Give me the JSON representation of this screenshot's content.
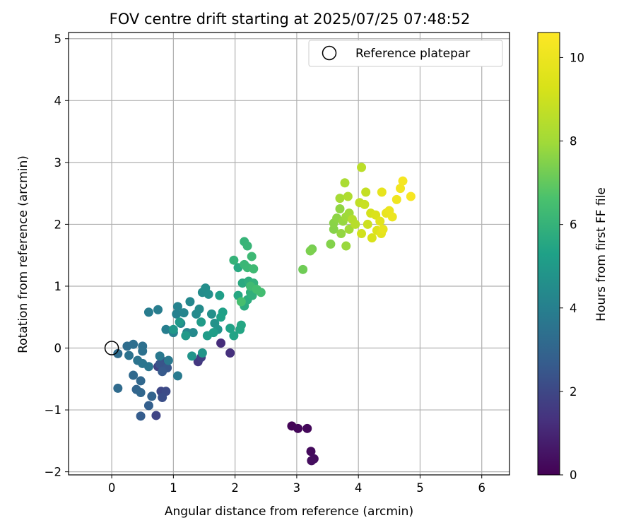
{
  "chart_data": {
    "type": "scatter",
    "title": "FOV centre drift starting at 2025/07/25 07:48:52",
    "xlabel": "Angular distance from reference (arcmin)",
    "ylabel": "Rotation from reference (arcmin)",
    "xlim": [
      -0.7,
      6.45
    ],
    "ylim": [
      -2.05,
      5.1
    ],
    "xticks": [
      0,
      1,
      2,
      3,
      4,
      5,
      6
    ],
    "yticks": [
      -2,
      -1,
      0,
      1,
      2,
      3,
      4,
      5
    ],
    "grid": true,
    "legend": {
      "position": "top-right",
      "entries": [
        "Reference platepar"
      ]
    },
    "reference_point": {
      "x": 0,
      "y": 0,
      "label": "Reference platepar",
      "marker": "open-circle"
    },
    "colorbar": {
      "label": "Hours from first FF file",
      "range": [
        0,
        10.6
      ],
      "ticks": [
        0,
        2,
        4,
        6,
        8,
        10
      ],
      "colormap": "viridis"
    },
    "points": [
      {
        "x": 2.92,
        "y": -1.26,
        "c": 0.1
      },
      {
        "x": 3.02,
        "y": -1.3,
        "c": 0.15
      },
      {
        "x": 3.17,
        "y": -1.3,
        "c": 0.2
      },
      {
        "x": 3.23,
        "y": -1.67,
        "c": 0.25
      },
      {
        "x": 3.28,
        "y": -1.79,
        "c": 0.3
      },
      {
        "x": 3.24,
        "y": -1.82,
        "c": 0.35
      },
      {
        "x": 1.77,
        "y": 0.08,
        "c": 1.2
      },
      {
        "x": 1.92,
        "y": -0.08,
        "c": 1.3
      },
      {
        "x": 1.4,
        "y": -0.22,
        "c": 1.5
      },
      {
        "x": 1.45,
        "y": -0.15,
        "c": 1.7
      },
      {
        "x": 0.75,
        "y": -0.3,
        "c": 1.8
      },
      {
        "x": 0.72,
        "y": -1.09,
        "c": 1.9
      },
      {
        "x": 0.8,
        "y": -0.7,
        "c": 2.0
      },
      {
        "x": 0.88,
        "y": -0.7,
        "c": 2.1
      },
      {
        "x": 0.82,
        "y": -0.8,
        "c": 2.2
      },
      {
        "x": 0.85,
        "y": -0.22,
        "c": 2.3
      },
      {
        "x": 0.78,
        "y": -0.26,
        "c": 2.4
      },
      {
        "x": 0.9,
        "y": -0.32,
        "c": 2.5
      },
      {
        "x": 0.82,
        "y": -0.38,
        "c": 2.6
      },
      {
        "x": 0.47,
        "y": -1.1,
        "c": 2.7
      },
      {
        "x": 0.6,
        "y": -0.93,
        "c": 2.8
      },
      {
        "x": 0.65,
        "y": -0.78,
        "c": 2.9
      },
      {
        "x": 0.4,
        "y": -0.67,
        "c": 3.0
      },
      {
        "x": 0.47,
        "y": -0.72,
        "c": 3.05
      },
      {
        "x": 0.47,
        "y": -0.53,
        "c": 3.1
      },
      {
        "x": 0.35,
        "y": -0.44,
        "c": 3.15
      },
      {
        "x": 0.1,
        "y": -0.65,
        "c": 3.2
      },
      {
        "x": 0.1,
        "y": -0.09,
        "c": 3.25
      },
      {
        "x": 0.25,
        "y": 0.03,
        "c": 3.3
      },
      {
        "x": 0.35,
        "y": 0.06,
        "c": 3.35
      },
      {
        "x": 0.5,
        "y": 0.03,
        "c": 3.4
      },
      {
        "x": 0.5,
        "y": -0.05,
        "c": 3.45
      },
      {
        "x": 0.28,
        "y": -0.12,
        "c": 3.5
      },
      {
        "x": 0.42,
        "y": -0.2,
        "c": 3.55
      },
      {
        "x": 0.5,
        "y": -0.25,
        "c": 3.6
      },
      {
        "x": 0.6,
        "y": -0.3,
        "c": 3.65
      },
      {
        "x": 0.78,
        "y": -0.13,
        "c": 3.7
      },
      {
        "x": 0.92,
        "y": -0.2,
        "c": 3.75
      },
      {
        "x": 1.07,
        "y": -0.45,
        "c": 3.8
      },
      {
        "x": 0.6,
        "y": 0.58,
        "c": 3.85
      },
      {
        "x": 0.75,
        "y": 0.62,
        "c": 3.9
      },
      {
        "x": 0.88,
        "y": 0.3,
        "c": 3.95
      },
      {
        "x": 1.0,
        "y": 0.25,
        "c": 4.0
      },
      {
        "x": 1.05,
        "y": 0.55,
        "c": 4.05
      },
      {
        "x": 1.07,
        "y": 0.67,
        "c": 4.1
      },
      {
        "x": 1.12,
        "y": 0.4,
        "c": 4.15
      },
      {
        "x": 1.17,
        "y": 0.57,
        "c": 4.2
      },
      {
        "x": 1.22,
        "y": 0.25,
        "c": 4.25
      },
      {
        "x": 1.27,
        "y": 0.75,
        "c": 4.3
      },
      {
        "x": 1.32,
        "y": 0.25,
        "c": 4.35
      },
      {
        "x": 1.37,
        "y": 0.55,
        "c": 4.4
      },
      {
        "x": 1.42,
        "y": 0.63,
        "c": 4.45
      },
      {
        "x": 1.47,
        "y": 0.9,
        "c": 4.5
      },
      {
        "x": 1.52,
        "y": 0.97,
        "c": 4.55
      },
      {
        "x": 1.57,
        "y": 0.87,
        "c": 4.6
      },
      {
        "x": 1.62,
        "y": 0.55,
        "c": 4.65
      },
      {
        "x": 1.67,
        "y": 0.4,
        "c": 4.7
      },
      {
        "x": 1.72,
        "y": 0.3,
        "c": 4.75
      },
      {
        "x": 1.3,
        "y": -0.13,
        "c": 4.8
      },
      {
        "x": 1.47,
        "y": -0.08,
        "c": 4.85
      },
      {
        "x": 1.0,
        "y": 0.3,
        "c": 4.9
      },
      {
        "x": 1.1,
        "y": 0.42,
        "c": 4.95
      },
      {
        "x": 1.2,
        "y": 0.2,
        "c": 5.0
      },
      {
        "x": 1.45,
        "y": 0.42,
        "c": 5.05
      },
      {
        "x": 1.55,
        "y": 0.2,
        "c": 5.1
      },
      {
        "x": 1.65,
        "y": 0.25,
        "c": 5.15
      },
      {
        "x": 1.75,
        "y": 0.85,
        "c": 5.2
      },
      {
        "x": 1.8,
        "y": 0.58,
        "c": 5.25
      },
      {
        "x": 1.77,
        "y": 0.5,
        "c": 5.3
      },
      {
        "x": 1.92,
        "y": 0.32,
        "c": 5.35
      },
      {
        "x": 1.98,
        "y": 0.2,
        "c": 5.4
      },
      {
        "x": 2.08,
        "y": 0.3,
        "c": 5.45
      },
      {
        "x": 2.1,
        "y": 0.37,
        "c": 5.5
      },
      {
        "x": 2.05,
        "y": 0.85,
        "c": 5.55
      },
      {
        "x": 2.05,
        "y": 1.3,
        "c": 5.6
      },
      {
        "x": 2.12,
        "y": 1.05,
        "c": 5.65
      },
      {
        "x": 2.15,
        "y": 0.68,
        "c": 5.7
      },
      {
        "x": 2.2,
        "y": 0.78,
        "c": 5.75
      },
      {
        "x": 2.22,
        "y": 1.08,
        "c": 5.8
      },
      {
        "x": 2.25,
        "y": 0.9,
        "c": 5.85
      },
      {
        "x": 2.28,
        "y": 0.85,
        "c": 5.9
      },
      {
        "x": 2.3,
        "y": 1.05,
        "c": 5.95
      },
      {
        "x": 1.98,
        "y": 1.42,
        "c": 6.0
      },
      {
        "x": 2.15,
        "y": 1.72,
        "c": 6.05
      },
      {
        "x": 2.2,
        "y": 1.65,
        "c": 6.1
      },
      {
        "x": 2.15,
        "y": 1.35,
        "c": 6.15
      },
      {
        "x": 2.2,
        "y": 1.3,
        "c": 6.2
      },
      {
        "x": 2.27,
        "y": 1.48,
        "c": 6.25
      },
      {
        "x": 2.3,
        "y": 1.28,
        "c": 6.3
      },
      {
        "x": 2.25,
        "y": 1.0,
        "c": 6.35
      },
      {
        "x": 2.42,
        "y": 0.9,
        "c": 6.4
      },
      {
        "x": 2.35,
        "y": 0.95,
        "c": 6.45
      },
      {
        "x": 2.1,
        "y": 0.75,
        "c": 6.5
      },
      {
        "x": 3.1,
        "y": 1.27,
        "c": 7.2
      },
      {
        "x": 3.25,
        "y": 1.6,
        "c": 7.3
      },
      {
        "x": 3.22,
        "y": 1.57,
        "c": 7.4
      },
      {
        "x": 3.55,
        "y": 1.68,
        "c": 7.5
      },
      {
        "x": 3.6,
        "y": 1.92,
        "c": 7.55
      },
      {
        "x": 3.6,
        "y": 2.02,
        "c": 7.6
      },
      {
        "x": 3.65,
        "y": 2.1,
        "c": 7.65
      },
      {
        "x": 3.7,
        "y": 2.25,
        "c": 7.7
      },
      {
        "x": 3.72,
        "y": 1.85,
        "c": 7.75
      },
      {
        "x": 3.75,
        "y": 2.05,
        "c": 7.8
      },
      {
        "x": 3.8,
        "y": 1.65,
        "c": 7.85
      },
      {
        "x": 3.8,
        "y": 2.12,
        "c": 7.9
      },
      {
        "x": 3.85,
        "y": 2.18,
        "c": 7.95
      },
      {
        "x": 3.85,
        "y": 1.92,
        "c": 8.0
      },
      {
        "x": 3.7,
        "y": 2.42,
        "c": 8.1
      },
      {
        "x": 3.78,
        "y": 2.67,
        "c": 8.2
      },
      {
        "x": 3.83,
        "y": 2.45,
        "c": 8.3
      },
      {
        "x": 3.9,
        "y": 2.08,
        "c": 8.4
      },
      {
        "x": 3.95,
        "y": 2.0,
        "c": 8.5
      },
      {
        "x": 4.05,
        "y": 2.92,
        "c": 8.6
      },
      {
        "x": 4.02,
        "y": 2.35,
        "c": 8.7
      },
      {
        "x": 4.12,
        "y": 2.52,
        "c": 8.8
      },
      {
        "x": 4.1,
        "y": 2.32,
        "c": 8.9
      },
      {
        "x": 4.15,
        "y": 2.0,
        "c": 9.0
      },
      {
        "x": 4.05,
        "y": 1.85,
        "c": 9.1
      },
      {
        "x": 4.2,
        "y": 2.18,
        "c": 9.2
      },
      {
        "x": 4.22,
        "y": 1.78,
        "c": 9.3
      },
      {
        "x": 4.28,
        "y": 2.15,
        "c": 9.4
      },
      {
        "x": 4.3,
        "y": 1.9,
        "c": 9.5
      },
      {
        "x": 4.35,
        "y": 2.05,
        "c": 9.6
      },
      {
        "x": 4.37,
        "y": 1.85,
        "c": 9.7
      },
      {
        "x": 4.38,
        "y": 2.52,
        "c": 9.8
      },
      {
        "x": 4.4,
        "y": 1.92,
        "c": 9.85
      },
      {
        "x": 4.45,
        "y": 2.18,
        "c": 9.9
      },
      {
        "x": 4.5,
        "y": 2.22,
        "c": 9.95
      },
      {
        "x": 4.55,
        "y": 2.12,
        "c": 10.0
      },
      {
        "x": 4.62,
        "y": 2.4,
        "c": 10.1
      },
      {
        "x": 4.68,
        "y": 2.58,
        "c": 10.2
      },
      {
        "x": 4.72,
        "y": 2.7,
        "c": 10.3
      },
      {
        "x": 4.85,
        "y": 2.45,
        "c": 10.4
      }
    ]
  }
}
